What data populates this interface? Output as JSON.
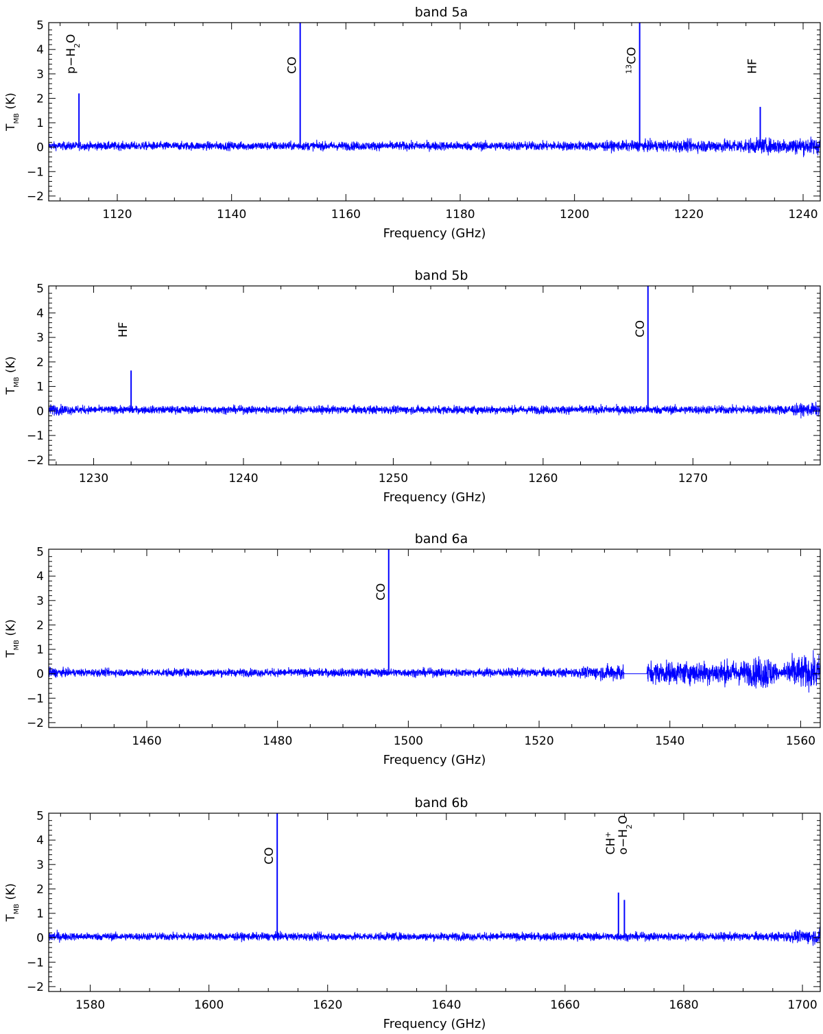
{
  "chart_data": [
    {
      "type": "line",
      "title": "band 5a",
      "xlabel": "Frequency (GHz)",
      "ylabel": "T_MB (K)",
      "xlim": [
        1108,
        1243
      ],
      "ylim": [
        -2.2,
        5.1
      ],
      "xticks": [
        1120,
        1140,
        1160,
        1180,
        1200,
        1220,
        1240
      ],
      "yticks": [
        -2,
        -1,
        0,
        1,
        2,
        3,
        4,
        5
      ],
      "noise_rms": [
        [
          1108,
          0.15
        ],
        [
          1200,
          0.17
        ],
        [
          1220,
          0.22
        ],
        [
          1243,
          0.32
        ]
      ],
      "lines": [
        {
          "label": "p−H2O",
          "x": 1113.3,
          "peak": 2.2,
          "label_y": 3.0
        },
        {
          "label": "CO",
          "x": 1152.0,
          "peak": 5.1,
          "label_y": 3.0
        },
        {
          "label": "13CO",
          "x": 1211.4,
          "peak": 5.1,
          "label_y": 3.0
        },
        {
          "label": "HF",
          "x": 1232.5,
          "peak": 1.65,
          "label_y": 3.0
        }
      ],
      "gaps": []
    },
    {
      "type": "line",
      "title": "band 5b",
      "xlabel": "Frequency (GHz)",
      "ylabel": "T_MB (K)",
      "xlim": [
        1227,
        1278.5
      ],
      "ylim": [
        -2.2,
        5.1
      ],
      "xticks": [
        1230,
        1240,
        1250,
        1260,
        1270
      ],
      "yticks": [
        -2,
        -1,
        0,
        1,
        2,
        3,
        4,
        5
      ],
      "noise_rms": [
        [
          1227,
          0.2
        ],
        [
          1230,
          0.14
        ],
        [
          1275,
          0.16
        ],
        [
          1278.5,
          0.25
        ]
      ],
      "lines": [
        {
          "label": "HF",
          "x": 1232.5,
          "peak": 1.65,
          "label_y": 3.0
        },
        {
          "label": "CO",
          "x": 1267.0,
          "peak": 5.1,
          "label_y": 3.0
        }
      ],
      "gaps": []
    },
    {
      "type": "line",
      "title": "band 6a",
      "xlabel": "Frequency (GHz)",
      "ylabel": "T_MB (K)",
      "xlim": [
        1445,
        1563
      ],
      "ylim": [
        -2.2,
        5.1
      ],
      "xticks": [
        1460,
        1480,
        1500,
        1520,
        1540,
        1560
      ],
      "yticks": [
        -2,
        -1,
        0,
        1,
        2,
        3,
        4,
        5
      ],
      "noise_rms": [
        [
          1445,
          0.2
        ],
        [
          1448,
          0.14
        ],
        [
          1525,
          0.16
        ],
        [
          1532,
          0.32
        ],
        [
          1537,
          0.4
        ],
        [
          1552,
          0.45
        ],
        [
          1555,
          0.7
        ],
        [
          1557,
          0.1
        ],
        [
          1558,
          0.6
        ],
        [
          1563,
          0.6
        ]
      ],
      "lines": [
        {
          "label": "CO",
          "x": 1497.0,
          "peak": 5.1,
          "label_y": 3.0
        }
      ],
      "gaps": [
        [
          1533.0,
          1536.5
        ]
      ]
    },
    {
      "type": "line",
      "title": "band 6b",
      "xlabel": "Frequency (GHz)",
      "ylabel": "T_MB (K)",
      "xlim": [
        1573,
        1703
      ],
      "ylim": [
        -2.2,
        5.1
      ],
      "xticks": [
        1580,
        1600,
        1620,
        1640,
        1660,
        1680,
        1700
      ],
      "yticks": [
        -2,
        -1,
        0,
        1,
        2,
        3,
        4,
        5
      ],
      "noise_rms": [
        [
          1573,
          0.22
        ],
        [
          1576,
          0.14
        ],
        [
          1695,
          0.15
        ],
        [
          1703,
          0.3
        ]
      ],
      "lines": [
        {
          "label": "CO",
          "x": 1611.5,
          "peak": 5.1,
          "label_y": 3.0
        },
        {
          "label": "CH+",
          "x": 1669.0,
          "peak": 1.85,
          "label_y": 3.4
        },
        {
          "label": "o−H2O",
          "x": 1670.0,
          "peak": 1.55,
          "label_y": 3.4
        }
      ],
      "gaps": []
    }
  ]
}
